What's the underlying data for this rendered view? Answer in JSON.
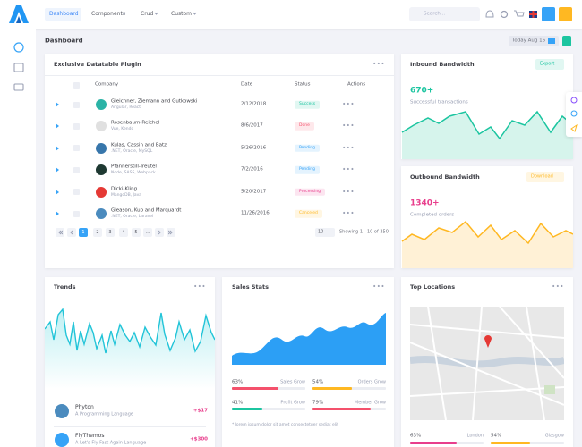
{
  "topbar": {
    "nav": [
      "Dashboard",
      "Components",
      "Crud",
      "Custom"
    ],
    "search_placeholder": "Search..."
  },
  "subheader": {
    "title": "Dashboard",
    "date": "Today Aug 16"
  },
  "datatable": {
    "title": "Exclusive Datatable Plugin",
    "columns": [
      "Company",
      "Date",
      "Status",
      "Actions"
    ],
    "rows": [
      {
        "company": "Gleichner, Ziemann and Gutkowski",
        "tech": "Angular, React",
        "date": "2/12/2018",
        "status": "Success",
        "status_color": "#1cc5a0"
      },
      {
        "company": "Rosenbaum-Reichel",
        "tech": "Vue, Kendo",
        "date": "8/6/2017",
        "status": "Done",
        "status_color": "#f4516c"
      },
      {
        "company": "Kulas, Cassin and Batz",
        "tech": ".NET, Oracle, MySQL",
        "date": "5/26/2016",
        "status": "Pending",
        "status_color": "#36a3f7"
      },
      {
        "company": "Pfannerstill-Treutel",
        "tech": "Node, SASS, Webpack",
        "date": "7/2/2016",
        "status": "Pending",
        "status_color": "#36a3f7"
      },
      {
        "company": "Dicki-Kling",
        "tech": "MangoDB, Java",
        "date": "5/20/2017",
        "status": "Processing",
        "status_color": "#e83e8c"
      },
      {
        "company": "Gleason, Kub and Marquardt",
        "tech": ".NET, Oracle, Laravel",
        "date": "11/26/2016",
        "status": "Canceled",
        "status_color": "#ffb822"
      }
    ],
    "pagination": {
      "pages": [
        "1",
        "2",
        "3",
        "4",
        "5",
        "..."
      ],
      "page_size": "10",
      "info": "Showing 1 - 10 of 350"
    }
  },
  "inbound": {
    "title": "Inbound Bandwidth",
    "button": "Export",
    "value": "670+",
    "caption": "Successful transactions"
  },
  "outbound": {
    "title": "Outbound Bandwidth",
    "button": "Download",
    "value": "1340+",
    "caption": "Completed orders"
  },
  "trends": {
    "title": "Trends",
    "items": [
      {
        "name": "Phyton",
        "desc": "A Programming Language",
        "amount": "+$17"
      },
      {
        "name": "FlyThemos",
        "desc": "A Let's Fly Fast Again Language",
        "amount": "+$300"
      }
    ]
  },
  "sales_stats": {
    "title": "Sales Stats",
    "stats": [
      {
        "value": 63,
        "label": "63%",
        "name": "Sales Grow",
        "color": "#f4516c"
      },
      {
        "value": 54,
        "label": "54%",
        "name": "Orders Grow",
        "color": "#ffb822"
      },
      {
        "value": 41,
        "label": "41%",
        "name": "Profit Grow",
        "color": "#1cc5a0"
      },
      {
        "value": 79,
        "label": "79%",
        "name": "Member Grow",
        "color": "#f4516c"
      }
    ],
    "note": "* lorem ipsum dolor sit amet consectetuer sediat elit"
  },
  "top_locations": {
    "title": "Top Locations",
    "stats": [
      {
        "value": 63,
        "label": "63%",
        "name": "London",
        "color": "#e83e8c"
      },
      {
        "value": 54,
        "label": "54%",
        "name": "Glasgow",
        "color": "#ffb822"
      }
    ]
  }
}
